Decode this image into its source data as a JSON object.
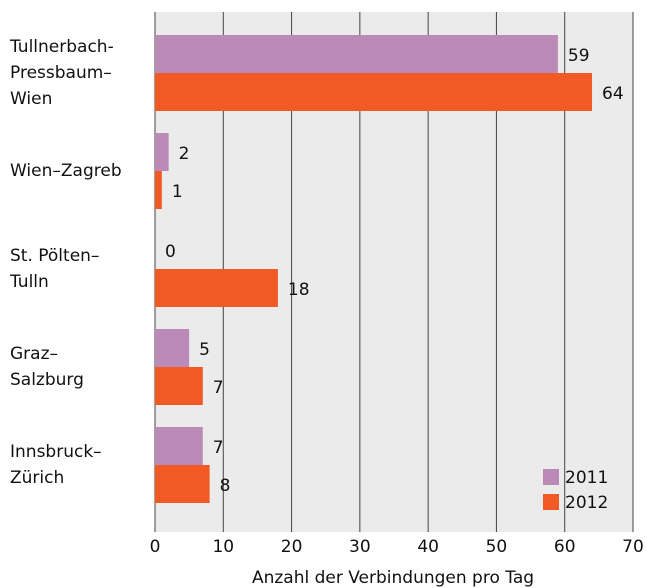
{
  "chart_data": {
    "type": "bar",
    "orientation": "horizontal",
    "categories": [
      [
        "Tullnerbach-",
        "Pressbaum–",
        "Wien"
      ],
      [
        "Wien–Zagreb"
      ],
      [
        "St. Pölten–",
        "Tulln"
      ],
      [
        "Graz–",
        "Salzburg"
      ],
      [
        "Innsbruck–",
        "Zürich"
      ]
    ],
    "series": [
      {
        "name": "2011",
        "color": "#bb8ab6",
        "values": [
          59,
          2,
          0,
          5,
          7
        ]
      },
      {
        "name": "2012",
        "color": "#f15a24",
        "values": [
          64,
          1,
          18,
          7,
          8
        ]
      }
    ],
    "xlabel": "Anzahl der Verbindungen pro Tag",
    "xlim": [
      0,
      70
    ],
    "xticks": [
      0,
      10,
      20,
      30,
      40,
      50,
      60,
      70
    ],
    "grid": true,
    "legend": "lower right"
  }
}
